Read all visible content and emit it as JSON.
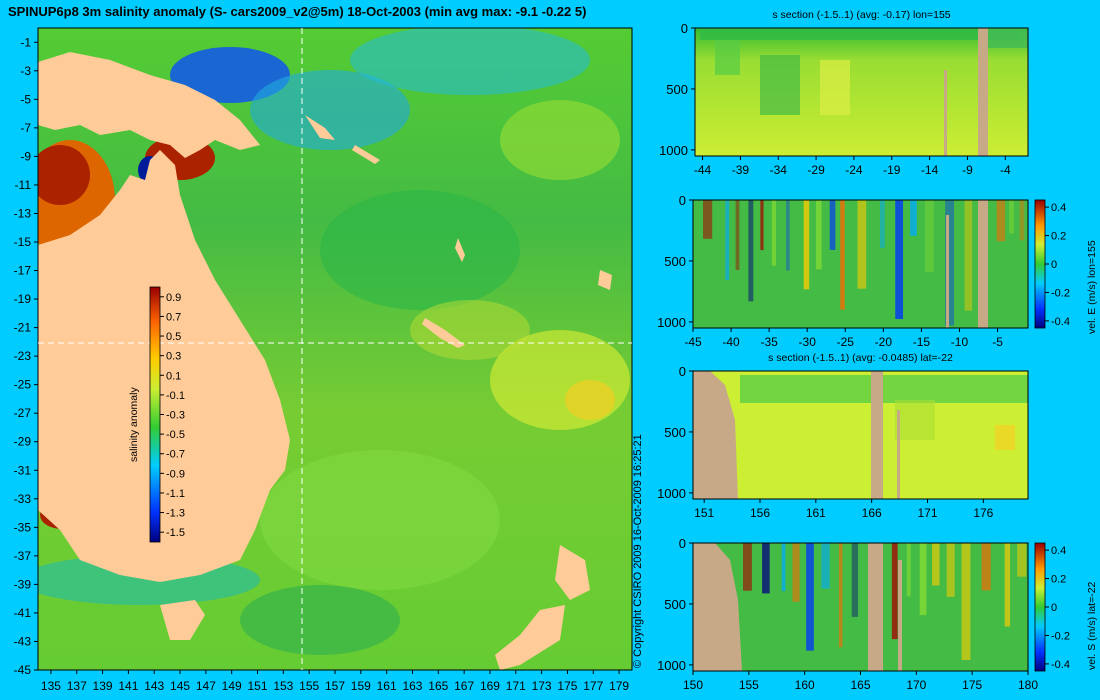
{
  "title": "SPINUP6p8 3m salinity anomaly (S- cars2009_v2@5m) 18-Oct-2003 (min avg max: -9.1 -0.22 5)",
  "copyright": "© Copyright CSIRO 2009  16-Oct-2009 16:25:21",
  "colors": {
    "background": "#00ccff",
    "land": "#ffcc99",
    "section_land": "#c8a987",
    "section_line": "#ffffff"
  },
  "chart_data": [
    {
      "id": "map",
      "type": "heatmap",
      "title": "SPINUP6p8 3m salinity anomaly (S- cars2009_v2@5m) 18-Oct-2003 (min avg max: -9.1 -0.22 5)",
      "x_ticks": [
        "135",
        "137",
        "139",
        "141",
        "143",
        "145",
        "147",
        "149",
        "151",
        "153",
        "155",
        "157",
        "159",
        "161",
        "163",
        "165",
        "167",
        "169",
        "171",
        "173",
        "175",
        "177",
        "179"
      ],
      "y_ticks": [
        "-1",
        "-3",
        "-5",
        "-7",
        "-9",
        "-11",
        "-13",
        "-15",
        "-17",
        "-19",
        "-21",
        "-23",
        "-25",
        "-27",
        "-29",
        "-31",
        "-33",
        "-35",
        "-37",
        "-39",
        "-41",
        "-43",
        "-45"
      ],
      "xlim": [
        134,
        180
      ],
      "ylim": [
        -45,
        0
      ],
      "section_lon": 155,
      "section_lat": -22,
      "colorbar": {
        "label": "salinity anomaly",
        "ticks": [
          "0.9",
          "0.7",
          "0.5",
          "0.3",
          "0.1",
          "-0.1",
          "-0.3",
          "-0.5",
          "-0.7",
          "-0.9",
          "-1.1",
          "-1.3",
          "-1.5"
        ],
        "range": [
          -1.6,
          1.0
        ]
      }
    },
    {
      "id": "section-1",
      "type": "heatmap",
      "title": "s section (-1.5..1) (avg: -0.17) lon=155",
      "x_ticks": [
        "-44",
        "-39",
        "-34",
        "-29",
        "-24",
        "-19",
        "-14",
        "-9",
        "-4"
      ],
      "xlim": [
        -45,
        -1
      ],
      "y_ticks": [
        "0",
        "500",
        "1000"
      ],
      "ylim": [
        0,
        1050
      ]
    },
    {
      "id": "section-2",
      "type": "heatmap",
      "title": "",
      "x_ticks": [
        "-45",
        "-40",
        "-35",
        "-30",
        "-25",
        "-20",
        "-15",
        "-10",
        "-5"
      ],
      "xlim": [
        -45,
        -1
      ],
      "y_ticks": [
        "0",
        "500",
        "1000"
      ],
      "ylim": [
        0,
        1050
      ],
      "colorbar": {
        "label": "vel. E (m/s) lon=155",
        "ticks": [
          "0.4",
          "0.2",
          "0",
          "-0.2",
          "-0.4"
        ],
        "range": [
          -0.45,
          0.45
        ]
      }
    },
    {
      "id": "section-3",
      "type": "heatmap",
      "title": "s section (-1.5..1) (avg: -0.0485) lat=-22",
      "x_ticks": [
        "151",
        "156",
        "161",
        "166",
        "171",
        "176"
      ],
      "xlim": [
        150,
        180
      ],
      "y_ticks": [
        "0",
        "500",
        "1000"
      ],
      "ylim": [
        0,
        1050
      ]
    },
    {
      "id": "section-4",
      "type": "heatmap",
      "title": "",
      "x_ticks": [
        "150",
        "155",
        "160",
        "165",
        "170",
        "175",
        "180"
      ],
      "xlim": [
        150,
        180
      ],
      "y_ticks": [
        "0",
        "500",
        "1000"
      ],
      "ylim": [
        0,
        1050
      ],
      "colorbar": {
        "label": "vel. S (m/s) lat=-22",
        "ticks": [
          "0.4",
          "0.2",
          "0",
          "-0.2",
          "-0.4"
        ],
        "range": [
          -0.45,
          0.45
        ]
      }
    }
  ]
}
